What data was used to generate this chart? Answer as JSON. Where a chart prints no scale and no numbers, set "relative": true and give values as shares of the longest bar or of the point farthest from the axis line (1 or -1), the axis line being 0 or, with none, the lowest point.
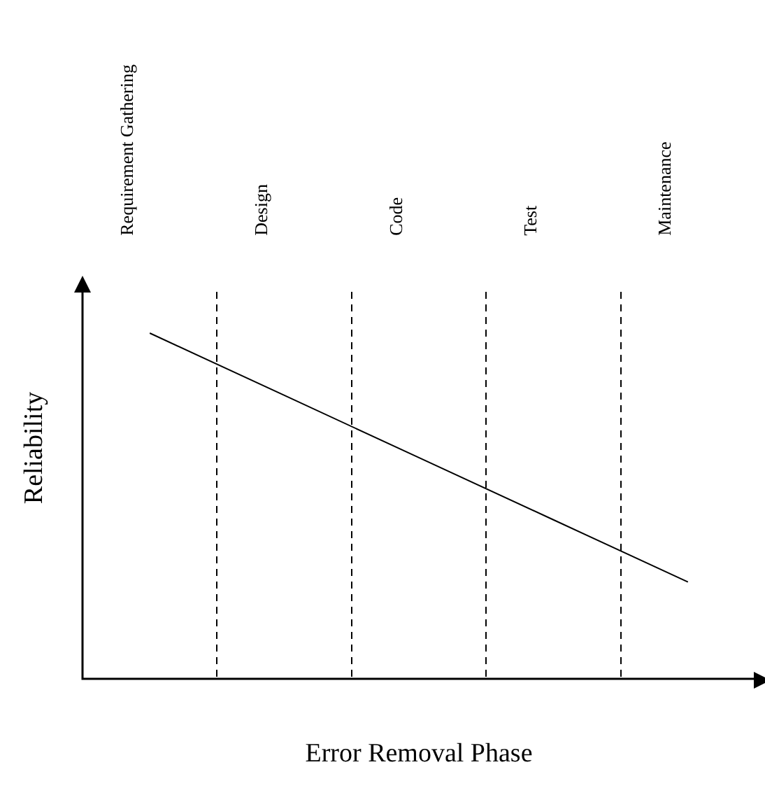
{
  "chart_data": {
    "type": "line",
    "xlabel": "Error Removal Phase",
    "ylabel": "Reliability",
    "relative": true,
    "grid": "x",
    "legend": false,
    "categories": [
      "Requirement Gathering",
      "Design",
      "Code",
      "Test",
      "Maintenance"
    ],
    "series": [
      {
        "color": "#000000",
        "values": [
          1,
          0.82,
          0.64,
          0.46,
          0.28
        ]
      }
    ]
  }
}
